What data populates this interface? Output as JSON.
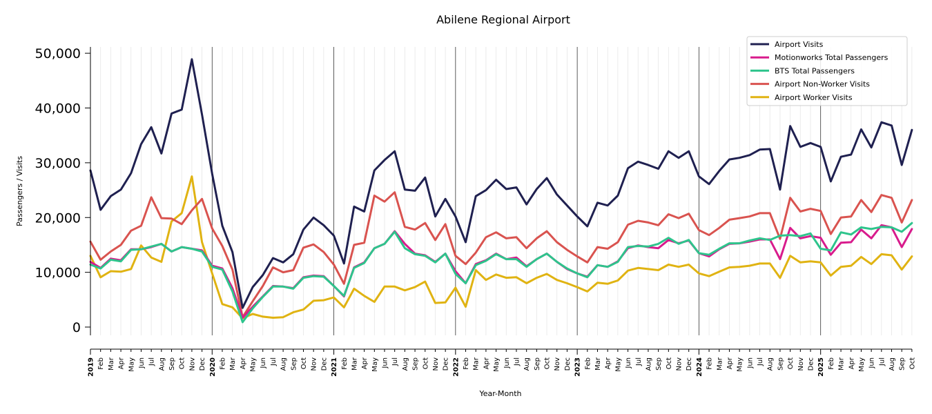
{
  "chart_data": {
    "type": "line",
    "title": "Abilene Regional Airport",
    "xlabel": "Year-Month",
    "ylabel": "Passengers / Visits",
    "ylim": [
      -1500,
      51500
    ],
    "yticks": [
      0,
      10000,
      20000,
      30000,
      40000,
      50000
    ],
    "ytick_labels": [
      "0",
      "10,000",
      "20,000",
      "30,000",
      "40,000",
      "50,000"
    ],
    "grid": "vertical monthly lines",
    "legend_position": "top-right",
    "month_labels": [
      "Jan",
      "Feb",
      "Mar",
      "Apr",
      "May",
      "Jun",
      "Jul",
      "Aug",
      "Sep",
      "Oct",
      "Nov",
      "Dec"
    ],
    "years": [
      "2019",
      "2020",
      "2021",
      "2022",
      "2023",
      "2024",
      "2025"
    ],
    "x": [
      "2019-01",
      "2019-02",
      "2019-03",
      "2019-04",
      "2019-05",
      "2019-06",
      "2019-07",
      "2019-08",
      "2019-09",
      "2019-10",
      "2019-11",
      "2019-12",
      "2020-01",
      "2020-02",
      "2020-03",
      "2020-04",
      "2020-05",
      "2020-06",
      "2020-07",
      "2020-08",
      "2020-09",
      "2020-10",
      "2020-11",
      "2020-12",
      "2021-01",
      "2021-02",
      "2021-03",
      "2021-04",
      "2021-05",
      "2021-06",
      "2021-07",
      "2021-08",
      "2021-09",
      "2021-10",
      "2021-11",
      "2021-12",
      "2022-01",
      "2022-02",
      "2022-03",
      "2022-04",
      "2022-05",
      "2022-06",
      "2022-07",
      "2022-08",
      "2022-09",
      "2022-10",
      "2022-11",
      "2022-12",
      "2023-01",
      "2023-02",
      "2023-03",
      "2023-04",
      "2023-05",
      "2023-06",
      "2023-07",
      "2023-08",
      "2023-09",
      "2023-10",
      "2023-11",
      "2023-12",
      "2024-01",
      "2024-02",
      "2024-03",
      "2024-04",
      "2024-05",
      "2024-06",
      "2024-07",
      "2024-08",
      "2024-09",
      "2024-10",
      "2024-11",
      "2024-12",
      "2025-01",
      "2025-02",
      "2025-03",
      "2025-04",
      "2025-05",
      "2025-06",
      "2025-07",
      "2025-08",
      "2025-09",
      "2025-10"
    ],
    "series": [
      {
        "name": "Airport Visits",
        "color": "#1f2050",
        "values": [
          28600,
          21400,
          23900,
          25100,
          28100,
          33400,
          36500,
          31700,
          39000,
          39700,
          48900,
          38800,
          28000,
          18500,
          13700,
          3500,
          7300,
          9500,
          12600,
          11800,
          13300,
          17800,
          20000,
          18600,
          16700,
          11600,
          22000,
          21100,
          28600,
          30500,
          32100,
          25100,
          24900,
          27300,
          20200,
          23400,
          20200,
          15500,
          23900,
          25000,
          26900,
          25200,
          25500,
          22400,
          25200,
          27200,
          24200,
          22200,
          20200,
          18400,
          22700,
          22200,
          24000,
          29000,
          30200,
          29600,
          28900,
          32100,
          30900,
          32100,
          27500,
          26100,
          28500,
          30600,
          30900,
          31400,
          32400,
          32500,
          25100,
          36700,
          32900,
          33600,
          32900,
          26600,
          31100,
          31500,
          36100,
          32800,
          37400,
          36800,
          29600,
          36000
        ]
      },
      {
        "name": "Motionworks Total Passengers",
        "color": "#d81b8c",
        "values": [
          11900,
          10800,
          12500,
          12200,
          14200,
          14200,
          14600,
          15200,
          13800,
          14600,
          14300,
          14000,
          11200,
          10700,
          7100,
          1700,
          3700,
          5600,
          7500,
          7400,
          7100,
          9100,
          9400,
          9300,
          7500,
          5600,
          10900,
          11800,
          14400,
          15200,
          17500,
          15200,
          13400,
          13100,
          11900,
          13400,
          10200,
          8000,
          11500,
          12200,
          13400,
          12400,
          12700,
          11100,
          12400,
          13400,
          11900,
          10600,
          9800,
          9200,
          11300,
          11000,
          12000,
          14400,
          14900,
          14600,
          14400,
          15900,
          15300,
          15800,
          13500,
          12900,
          14200,
          15200,
          15300,
          15600,
          16000,
          16000,
          12400,
          18100,
          16200,
          16600,
          16300,
          13200,
          15400,
          15500,
          17800,
          16200,
          18600,
          18200,
          14600,
          17900
        ]
      },
      {
        "name": "BTS Total Passengers",
        "color": "#2ec48c",
        "values": [
          11400,
          10700,
          12300,
          12000,
          14100,
          14200,
          14700,
          15200,
          13800,
          14600,
          14300,
          13800,
          11000,
          10500,
          6500,
          900,
          3400,
          5500,
          7400,
          7400,
          7000,
          9000,
          9300,
          9200,
          7500,
          5700,
          10800,
          11700,
          14400,
          15200,
          17400,
          14400,
          13300,
          13000,
          11800,
          13400,
          9700,
          8000,
          11300,
          12100,
          13300,
          12400,
          12400,
          11000,
          12400,
          13400,
          11900,
          10700,
          9800,
          9100,
          11300,
          11000,
          11900,
          14600,
          14800,
          14700,
          15200,
          16300,
          15200,
          15900,
          13500,
          13200,
          14300,
          15300,
          15300,
          15800,
          16200,
          15900,
          16700,
          16800,
          16600,
          17100,
          14300,
          14000,
          17300,
          16900,
          18200,
          17900,
          18300,
          18200,
          17400,
          19000
        ]
      },
      {
        "name": "Airport Non-Worker Visits",
        "color": "#d9534f",
        "values": [
          15600,
          12300,
          13800,
          15000,
          17600,
          18500,
          23700,
          19900,
          19800,
          18800,
          21300,
          23400,
          18000,
          14800,
          10500,
          1800,
          4700,
          7500,
          10900,
          10000,
          10400,
          14500,
          15100,
          13700,
          11400,
          7900,
          15000,
          15400,
          24000,
          22900,
          24600,
          18300,
          17800,
          19000,
          15900,
          18800,
          13000,
          11500,
          13600,
          16400,
          17300,
          16200,
          16400,
          14400,
          16200,
          17500,
          15500,
          14100,
          12900,
          11800,
          14600,
          14300,
          15500,
          18700,
          19400,
          19100,
          18600,
          20600,
          19900,
          20700,
          17700,
          16800,
          18100,
          19600,
          19900,
          20200,
          20800,
          20800,
          16100,
          23600,
          21100,
          21600,
          21200,
          17000,
          20000,
          20200,
          23200,
          21000,
          24100,
          23600,
          19100,
          23200
        ]
      },
      {
        "name": "Airport Worker Visits",
        "color": "#e0b312",
        "values": [
          13000,
          9100,
          10200,
          10100,
          10600,
          14900,
          12700,
          11900,
          19300,
          20800,
          27500,
          15500,
          9800,
          4200,
          3600,
          1600,
          2400,
          1900,
          1700,
          1800,
          2700,
          3200,
          4800,
          4900,
          5400,
          3600,
          7000,
          5700,
          4600,
          7400,
          7400,
          6700,
          7300,
          8300,
          4400,
          4500,
          7200,
          3700,
          10400,
          8600,
          9600,
          9000,
          9100,
          8000,
          9000,
          9700,
          8600,
          8000,
          7300,
          6500,
          8100,
          7900,
          8500,
          10300,
          10800,
          10600,
          10400,
          11400,
          11000,
          11400,
          9800,
          9300,
          10100,
          10900,
          11000,
          11200,
          11600,
          11600,
          9000,
          13000,
          11800,
          12000,
          11800,
          9400,
          11000,
          11200,
          12800,
          11500,
          13300,
          13100,
          10500,
          12900
        ]
      }
    ]
  }
}
